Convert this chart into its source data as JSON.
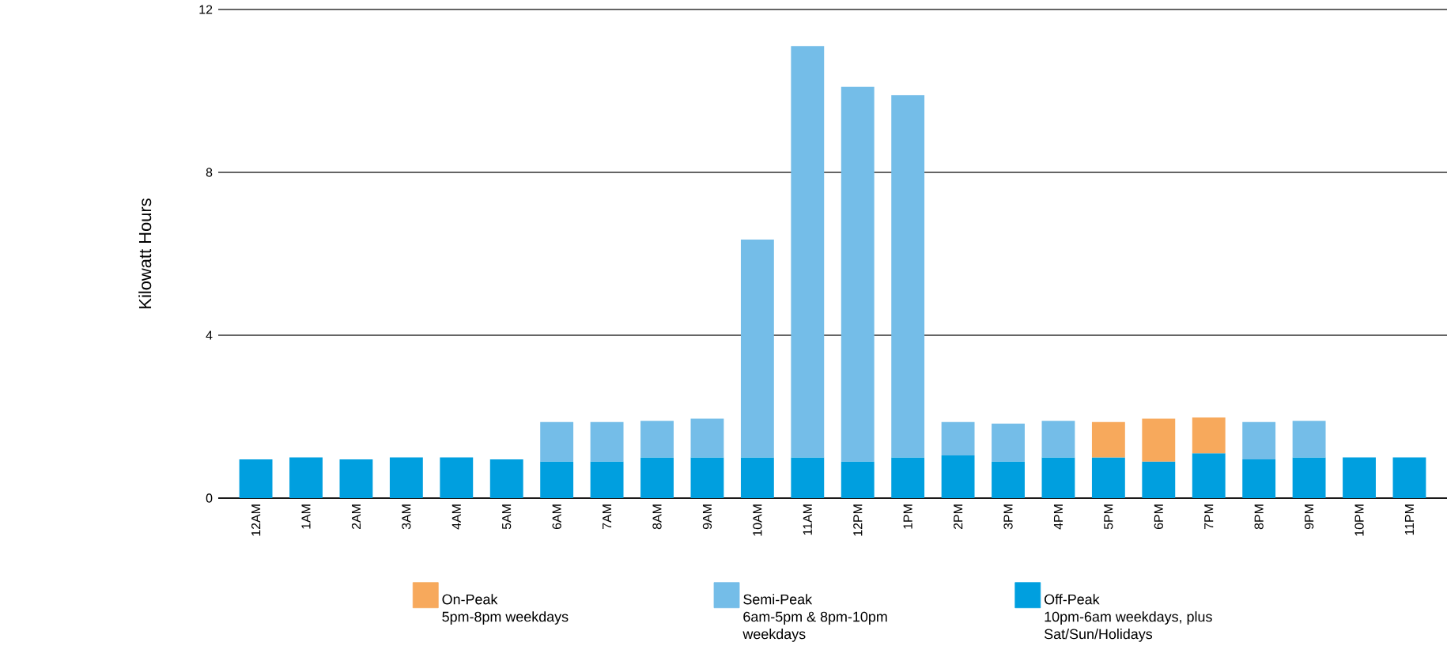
{
  "chart_data": {
    "type": "bar",
    "stacked": true,
    "ylabel": "Kilowatt Hours",
    "categories": [
      "12AM",
      "1AM",
      "2AM",
      "3AM",
      "4AM",
      "5AM",
      "6AM",
      "7AM",
      "8AM",
      "9AM",
      "10AM",
      "11AM",
      "12PM",
      "1PM",
      "2PM",
      "3PM",
      "4PM",
      "5PM",
      "6PM",
      "7PM",
      "8PM",
      "9PM",
      "10PM",
      "11PM"
    ],
    "series": [
      {
        "name": "Off-Peak",
        "color": "#009fdf",
        "values": [
          0.95,
          1.0,
          0.95,
          1.0,
          1.0,
          0.95,
          0.9,
          0.9,
          1.0,
          1.0,
          1.0,
          1.0,
          0.9,
          1.0,
          1.05,
          0.9,
          1.0,
          1.0,
          0.9,
          1.1,
          0.95,
          1.0,
          1.0,
          1.0
        ]
      },
      {
        "name": "Semi-Peak",
        "color": "#74bde8",
        "values": [
          null,
          null,
          null,
          null,
          null,
          null,
          0.97,
          0.97,
          0.9,
          0.95,
          5.35,
          10.1,
          9.2,
          8.9,
          0.82,
          0.93,
          0.9,
          null,
          null,
          null,
          0.92,
          0.9,
          null,
          null
        ]
      },
      {
        "name": "On-Peak",
        "color": "#f7a95c",
        "values": [
          null,
          null,
          null,
          null,
          null,
          null,
          null,
          null,
          null,
          null,
          null,
          null,
          null,
          null,
          null,
          null,
          null,
          0.87,
          1.05,
          0.88,
          null,
          null,
          null,
          null
        ]
      }
    ],
    "annotations": [
      "10pm-6am weekdays, plus Sat/Sun/Holidays",
      "6am-5pm & 8pm-10pm weekdays",
      "5pm-8pm weekdays"
    ],
    "ylim": [
      0,
      12
    ],
    "yticks": [
      0,
      4,
      8,
      12
    ],
    "grid": "y",
    "legend": "bottom"
  }
}
